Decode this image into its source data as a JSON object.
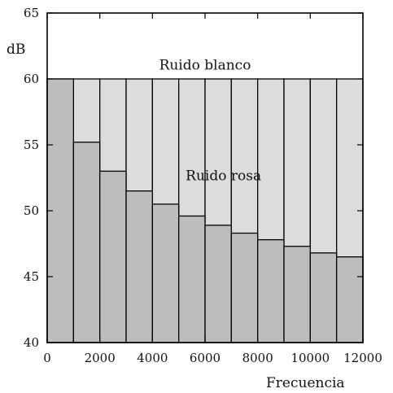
{
  "chart_data": {
    "type": "bar",
    "ylabel": "dB",
    "xlabel": "Frecuencia",
    "xlim": [
      0,
      12000
    ],
    "ylim": [
      40,
      65
    ],
    "x_ticks": [
      "0",
      "2000",
      "4000",
      "6000",
      "8000",
      "10000",
      "12000"
    ],
    "x_tick_values": [
      0,
      2000,
      4000,
      6000,
      8000,
      10000,
      12000
    ],
    "y_ticks": [
      "40",
      "45",
      "50",
      "55",
      "60",
      "65"
    ],
    "y_tick_values": [
      40,
      45,
      50,
      55,
      60,
      65
    ],
    "bin_width": 1000,
    "series": [
      {
        "name": "Ruido blanco",
        "values": [
          60,
          60,
          60,
          60,
          60,
          60,
          60,
          60,
          60,
          60,
          60,
          60
        ],
        "color": "#dcdcdc"
      },
      {
        "name": "Ruido rosa",
        "values": [
          60,
          55.2,
          53.0,
          51.5,
          50.5,
          49.6,
          48.9,
          48.3,
          47.8,
          47.3,
          46.8,
          46.5
        ],
        "color": "#bdbdbd"
      }
    ],
    "annotations": [
      {
        "text": "Ruido blanco",
        "x": 6000,
        "y": 60.7
      },
      {
        "text": "Ruido rosa",
        "x": 6700,
        "y": 52.3
      }
    ],
    "grid": false
  }
}
